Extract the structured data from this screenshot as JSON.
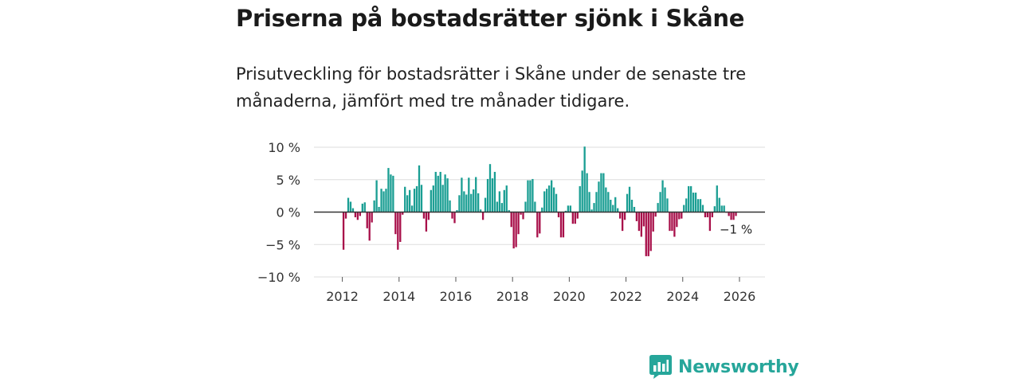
{
  "header": {
    "title": "Priserna på bostadsrätter sjönk i Skåne",
    "subtitle": "Prisutveckling för bostadsrätter i Skåne under de senaste tre månaderna, jämfört med tre månader tidigare."
  },
  "brand": {
    "name": "Newsworthy",
    "color": "#26a69a",
    "icon": "newsworthy-logo-icon"
  },
  "colors": {
    "positive": "#1a9e93",
    "negative": "#a8104a",
    "grid": "#dddddd",
    "zero": "#333333"
  },
  "chart_data": {
    "type": "bar",
    "title": "Priserna på bostadsrätter sjönk i Skåne",
    "xlabel": "",
    "ylabel": "",
    "unit": "%",
    "ylim": [
      -10,
      10
    ],
    "yticks": [
      10,
      5,
      0,
      -5,
      -10
    ],
    "ytick_labels": [
      "10 %",
      "5 %",
      "0 %",
      "−5 %",
      "−10 %"
    ],
    "xlim": [
      2011.0,
      2026.9
    ],
    "xticks": [
      2012,
      2014,
      2016,
      2018,
      2020,
      2022,
      2024,
      2026
    ],
    "xtick_labels": [
      "2012",
      "2014",
      "2016",
      "2018",
      "2020",
      "2022",
      "2024",
      "2026"
    ],
    "grid": true,
    "start": "2012-01",
    "frequency": "monthly",
    "values": [
      -5.8,
      -1.0,
      2.2,
      1.6,
      0.6,
      -0.8,
      -1.2,
      -0.6,
      1.3,
      1.5,
      -2.5,
      -4.4,
      -1.6,
      1.8,
      4.9,
      0.8,
      3.6,
      3.2,
      3.6,
      6.8,
      5.8,
      5.6,
      -3.4,
      -5.8,
      -4.6,
      -0.4,
      3.9,
      2.6,
      3.4,
      1.0,
      3.6,
      4.0,
      7.2,
      4.2,
      -1.0,
      -3.0,
      -1.2,
      3.4,
      4.1,
      6.2,
      5.6,
      6.2,
      4.2,
      5.8,
      5.2,
      1.8,
      -1.0,
      -1.7,
      0.3,
      2.6,
      5.3,
      3.2,
      2.7,
      5.3,
      2.8,
      3.5,
      5.4,
      2.9,
      0.4,
      -1.2,
      2.2,
      5.1,
      7.4,
      5.2,
      6.2,
      1.6,
      3.2,
      1.4,
      3.4,
      4.1,
      0.3,
      -2.3,
      -5.6,
      -5.4,
      -3.4,
      -0.4,
      -1.1,
      1.6,
      4.9,
      4.9,
      5.1,
      1.6,
      -3.9,
      -3.3,
      0.7,
      3.2,
      3.6,
      4.1,
      4.9,
      3.8,
      2.8,
      -0.8,
      -3.9,
      -3.9,
      0.2,
      1.0,
      1.0,
      -1.8,
      -1.8,
      -1.0,
      4.0,
      6.4,
      10.1,
      6.0,
      3.1,
      0.4,
      1.4,
      3.1,
      4.7,
      6.0,
      6.0,
      3.8,
      3.1,
      1.9,
      1.1,
      2.3,
      0.6,
      -1.0,
      -2.9,
      -1.2,
      2.8,
      3.9,
      1.9,
      0.8,
      -1.4,
      -2.9,
      -3.8,
      -2.2,
      -6.8,
      -6.8,
      -6.0,
      -3.0,
      -0.7,
      1.4,
      3.1,
      4.9,
      3.8,
      2.1,
      -2.9,
      -2.9,
      -3.8,
      -2.3,
      -1.1,
      -1.0,
      1.1,
      2.1,
      4.0,
      4.0,
      3.0,
      3.0,
      2.0,
      2.0,
      1.1,
      -0.8,
      -0.8,
      -2.9,
      -0.8,
      0.9,
      4.1,
      2.2,
      1.0,
      1.0,
      -0.1,
      -0.6,
      -1.2,
      -1.2,
      -0.6
    ],
    "annotations": [
      {
        "label": "−1 %",
        "target": "last"
      }
    ]
  }
}
